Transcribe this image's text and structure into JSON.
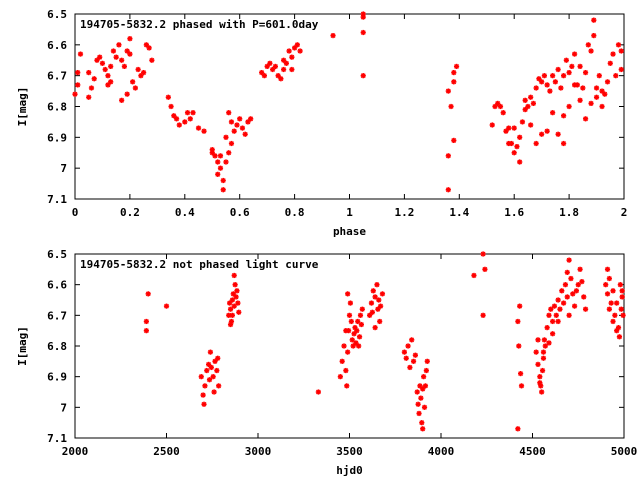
{
  "chart_data": [
    {
      "type": "scatter",
      "title": "194705-5832.2 phased with P=601.0day",
      "xlabel": "phase",
      "ylabel": "I[mag]",
      "xlim": [
        0,
        2
      ],
      "ylim": [
        7.1,
        6.5
      ],
      "y_inverted": true,
      "grid": false,
      "marker_color": "#ff0000",
      "xticks": [
        0,
        0.2,
        0.4,
        0.6,
        0.8,
        1,
        1.2,
        1.4,
        1.6,
        1.8,
        2
      ],
      "xtick_labels": [
        "0",
        "0.2",
        "0.4",
        "0.6",
        "0.8",
        "1",
        "1.2",
        "1.4",
        "1.6",
        "1.8",
        "2"
      ],
      "yticks": [
        6.5,
        6.6,
        6.7,
        6.8,
        6.9,
        7.0,
        7.1
      ],
      "ytick_labels": [
        "6.5",
        "6.6",
        "6.7",
        "6.8",
        "6.9",
        "7",
        "7.1"
      ],
      "points": [
        [
          0.01,
          6.69
        ],
        [
          0.01,
          6.73
        ],
        [
          0.0,
          6.76
        ],
        [
          0.02,
          6.63
        ],
        [
          0.05,
          6.69
        ],
        [
          0.05,
          6.77
        ],
        [
          0.06,
          6.74
        ],
        [
          0.07,
          6.71
        ],
        [
          0.08,
          6.65
        ],
        [
          0.09,
          6.64
        ],
        [
          0.1,
          6.66
        ],
        [
          0.11,
          6.68
        ],
        [
          0.12,
          6.7
        ],
        [
          0.12,
          6.73
        ],
        [
          0.13,
          6.67
        ],
        [
          0.14,
          6.62
        ],
        [
          0.15,
          6.64
        ],
        [
          0.16,
          6.6
        ],
        [
          0.17,
          6.65
        ],
        [
          0.18,
          6.67
        ],
        [
          0.19,
          6.62
        ],
        [
          0.2,
          6.58
        ],
        [
          0.2,
          6.63
        ],
        [
          0.21,
          6.72
        ],
        [
          0.22,
          6.74
        ],
        [
          0.23,
          6.68
        ],
        [
          0.24,
          6.7
        ],
        [
          0.25,
          6.69
        ],
        [
          0.26,
          6.6
        ],
        [
          0.27,
          6.61
        ],
        [
          0.28,
          6.65
        ],
        [
          0.17,
          6.78
        ],
        [
          0.19,
          6.76
        ],
        [
          0.13,
          6.72
        ],
        [
          0.34,
          6.77
        ],
        [
          0.35,
          6.8
        ],
        [
          0.36,
          6.83
        ],
        [
          0.37,
          6.84
        ],
        [
          0.38,
          6.86
        ],
        [
          0.4,
          6.85
        ],
        [
          0.41,
          6.82
        ],
        [
          0.42,
          6.84
        ],
        [
          0.43,
          6.82
        ],
        [
          0.45,
          6.87
        ],
        [
          0.47,
          6.88
        ],
        [
          0.5,
          6.94
        ],
        [
          0.51,
          6.96
        ],
        [
          0.52,
          6.98
        ],
        [
          0.53,
          7.0
        ],
        [
          0.54,
          7.04
        ],
        [
          0.55,
          6.98
        ],
        [
          0.56,
          6.95
        ],
        [
          0.57,
          6.92
        ],
        [
          0.58,
          6.88
        ],
        [
          0.59,
          6.86
        ],
        [
          0.6,
          6.84
        ],
        [
          0.61,
          6.87
        ],
        [
          0.62,
          6.89
        ],
        [
          0.63,
          6.85
        ],
        [
          0.64,
          6.84
        ],
        [
          0.57,
          6.85
        ],
        [
          0.56,
          6.82
        ],
        [
          0.55,
          6.9
        ],
        [
          0.53,
          6.96
        ],
        [
          0.52,
          7.02
        ],
        [
          0.54,
          7.07
        ],
        [
          0.5,
          6.95
        ],
        [
          0.68,
          6.69
        ],
        [
          0.69,
          6.7
        ],
        [
          0.7,
          6.67
        ],
        [
          0.71,
          6.66
        ],
        [
          0.72,
          6.68
        ],
        [
          0.73,
          6.67
        ],
        [
          0.74,
          6.7
        ],
        [
          0.75,
          6.71
        ],
        [
          0.76,
          6.68
        ],
        [
          0.77,
          6.66
        ],
        [
          0.78,
          6.62
        ],
        [
          0.79,
          6.64
        ],
        [
          0.8,
          6.61
        ],
        [
          0.79,
          6.68
        ],
        [
          0.81,
          6.6
        ],
        [
          0.82,
          6.62
        ],
        [
          0.76,
          6.65
        ],
        [
          0.94,
          6.57
        ],
        [
          1.05,
          6.5
        ],
        [
          1.05,
          6.56
        ],
        [
          1.05,
          6.7
        ],
        [
          1.05,
          6.51
        ],
        [
          1.36,
          6.75
        ],
        [
          1.37,
          6.8
        ],
        [
          1.38,
          6.72
        ],
        [
          1.38,
          6.69
        ],
        [
          1.39,
          6.67
        ],
        [
          1.36,
          6.96
        ],
        [
          1.38,
          6.91
        ],
        [
          1.36,
          7.07
        ],
        [
          1.52,
          6.86
        ],
        [
          1.53,
          6.8
        ],
        [
          1.54,
          6.79
        ],
        [
          1.55,
          6.8
        ],
        [
          1.56,
          6.82
        ],
        [
          1.57,
          6.88
        ],
        [
          1.58,
          6.87
        ],
        [
          1.59,
          6.92
        ],
        [
          1.6,
          6.95
        ],
        [
          1.61,
          6.93
        ],
        [
          1.62,
          6.98
        ],
        [
          1.58,
          6.92
        ],
        [
          1.63,
          6.85
        ],
        [
          1.64,
          6.78
        ],
        [
          1.65,
          6.8
        ],
        [
          1.66,
          6.77
        ],
        [
          1.67,
          6.79
        ],
        [
          1.68,
          6.74
        ],
        [
          1.69,
          6.71
        ],
        [
          1.7,
          6.72
        ],
        [
          1.71,
          6.7
        ],
        [
          1.72,
          6.73
        ],
        [
          1.73,
          6.75
        ],
        [
          1.74,
          6.7
        ],
        [
          1.75,
          6.72
        ],
        [
          1.76,
          6.68
        ],
        [
          1.77,
          6.74
        ],
        [
          1.78,
          6.7
        ],
        [
          1.79,
          6.65
        ],
        [
          1.8,
          6.69
        ],
        [
          1.81,
          6.67
        ],
        [
          1.82,
          6.63
        ],
        [
          1.83,
          6.73
        ],
        [
          1.84,
          6.78
        ],
        [
          1.85,
          6.74
        ],
        [
          1.86,
          6.69
        ],
        [
          1.87,
          6.6
        ],
        [
          1.88,
          6.62
        ],
        [
          1.89,
          6.52
        ],
        [
          1.89,
          6.57
        ],
        [
          1.9,
          6.74
        ],
        [
          1.91,
          6.7
        ],
        [
          1.92,
          6.8
        ],
        [
          1.93,
          6.76
        ],
        [
          1.94,
          6.72
        ],
        [
          1.95,
          6.66
        ],
        [
          1.96,
          6.63
        ],
        [
          1.97,
          6.7
        ],
        [
          1.98,
          6.6
        ],
        [
          1.99,
          6.68
        ],
        [
          1.99,
          6.62
        ],
        [
          1.7,
          6.89
        ],
        [
          1.68,
          6.92
        ],
        [
          1.66,
          6.86
        ],
        [
          1.72,
          6.88
        ],
        [
          1.78,
          6.83
        ],
        [
          1.76,
          6.89
        ],
        [
          1.8,
          6.8
        ],
        [
          1.82,
          6.73
        ],
        [
          1.84,
          6.67
        ],
        [
          1.86,
          6.84
        ],
        [
          1.88,
          6.79
        ],
        [
          1.9,
          6.77
        ],
        [
          1.92,
          6.75
        ],
        [
          1.78,
          6.92
        ],
        [
          1.74,
          6.82
        ],
        [
          1.64,
          6.81
        ],
        [
          1.62,
          6.9
        ],
        [
          1.6,
          6.87
        ]
      ]
    },
    {
      "type": "scatter",
      "title": "194705-5832.2 not phased light curve",
      "xlabel": "hjd0",
      "ylabel": "I[mag]",
      "xlim": [
        2000,
        5000
      ],
      "ylim": [
        7.1,
        6.5
      ],
      "y_inverted": true,
      "grid": false,
      "marker_color": "#ff0000",
      "xticks": [
        2000,
        2500,
        3000,
        3500,
        4000,
        4500,
        5000
      ],
      "xtick_labels": [
        "2000",
        "2500",
        "3000",
        "3500",
        "4000",
        "4500",
        "5000"
      ],
      "yticks": [
        6.5,
        6.6,
        6.7,
        6.8,
        6.9,
        7.0,
        7.1
      ],
      "ytick_labels": [
        "6.5",
        "6.6",
        "6.7",
        "6.8",
        "6.9",
        "7",
        "7.1"
      ],
      "points": [
        [
          2400,
          6.63
        ],
        [
          2390,
          6.72
        ],
        [
          2390,
          6.75
        ],
        [
          2500,
          6.67
        ],
        [
          2690,
          6.9
        ],
        [
          2700,
          6.96
        ],
        [
          2705,
          6.99
        ],
        [
          2710,
          6.93
        ],
        [
          2720,
          6.88
        ],
        [
          2730,
          6.86
        ],
        [
          2740,
          6.82
        ],
        [
          2745,
          6.87
        ],
        [
          2755,
          6.9
        ],
        [
          2765,
          6.85
        ],
        [
          2775,
          6.88
        ],
        [
          2780,
          6.84
        ],
        [
          2785,
          6.93
        ],
        [
          2760,
          6.95
        ],
        [
          2735,
          6.91
        ],
        [
          2840,
          6.7
        ],
        [
          2845,
          6.66
        ],
        [
          2850,
          6.68
        ],
        [
          2855,
          6.72
        ],
        [
          2860,
          6.65
        ],
        [
          2865,
          6.63
        ],
        [
          2870,
          6.67
        ],
        [
          2875,
          6.6
        ],
        [
          2880,
          6.64
        ],
        [
          2885,
          6.62
        ],
        [
          2890,
          6.66
        ],
        [
          2895,
          6.69
        ],
        [
          2870,
          6.57
        ],
        [
          2860,
          6.7
        ],
        [
          2850,
          6.73
        ],
        [
          3330,
          6.95
        ],
        [
          3450,
          6.9
        ],
        [
          3460,
          6.85
        ],
        [
          3470,
          6.8
        ],
        [
          3480,
          6.88
        ],
        [
          3485,
          6.93
        ],
        [
          3490,
          6.82
        ],
        [
          3495,
          6.75
        ],
        [
          3500,
          6.7
        ],
        [
          3505,
          6.66
        ],
        [
          3510,
          6.72
        ],
        [
          3515,
          6.78
        ],
        [
          3520,
          6.8
        ],
        [
          3525,
          6.76
        ],
        [
          3530,
          6.74
        ],
        [
          3535,
          6.79
        ],
        [
          3540,
          6.75
        ],
        [
          3545,
          6.72
        ],
        [
          3550,
          6.8
        ],
        [
          3555,
          6.77
        ],
        [
          3560,
          6.7
        ],
        [
          3565,
          6.73
        ],
        [
          3570,
          6.68
        ],
        [
          3490,
          6.63
        ],
        [
          3480,
          6.75
        ],
        [
          3610,
          6.7
        ],
        [
          3620,
          6.66
        ],
        [
          3630,
          6.62
        ],
        [
          3640,
          6.64
        ],
        [
          3650,
          6.6
        ],
        [
          3655,
          6.68
        ],
        [
          3660,
          6.65
        ],
        [
          3665,
          6.72
        ],
        [
          3670,
          6.67
        ],
        [
          3680,
          6.63
        ],
        [
          3640,
          6.74
        ],
        [
          3625,
          6.69
        ],
        [
          3800,
          6.82
        ],
        [
          3810,
          6.84
        ],
        [
          3820,
          6.8
        ],
        [
          3830,
          6.87
        ],
        [
          3840,
          6.78
        ],
        [
          3850,
          6.85
        ],
        [
          3860,
          6.83
        ],
        [
          3870,
          6.95
        ],
        [
          3875,
          6.99
        ],
        [
          3880,
          7.02
        ],
        [
          3890,
          6.97
        ],
        [
          3895,
          7.05
        ],
        [
          3900,
          6.94
        ],
        [
          3905,
          6.9
        ],
        [
          3910,
          7.0
        ],
        [
          3915,
          6.93
        ],
        [
          3920,
          6.88
        ],
        [
          3925,
          6.85
        ],
        [
          3885,
          6.93
        ],
        [
          3900,
          7.07
        ],
        [
          4180,
          6.57
        ],
        [
          4230,
          6.5
        ],
        [
          4240,
          6.55
        ],
        [
          4230,
          6.7
        ],
        [
          4420,
          6.72
        ],
        [
          4430,
          6.67
        ],
        [
          4425,
          6.8
        ],
        [
          4440,
          6.93
        ],
        [
          4435,
          6.89
        ],
        [
          4420,
          7.07
        ],
        [
          4520,
          6.82
        ],
        [
          4530,
          6.86
        ],
        [
          4540,
          6.9
        ],
        [
          4545,
          6.93
        ],
        [
          4550,
          6.95
        ],
        [
          4555,
          6.88
        ],
        [
          4560,
          6.82
        ],
        [
          4565,
          6.78
        ],
        [
          4570,
          6.8
        ],
        [
          4580,
          6.74
        ],
        [
          4590,
          6.7
        ],
        [
          4600,
          6.68
        ],
        [
          4610,
          6.72
        ],
        [
          4620,
          6.67
        ],
        [
          4630,
          6.7
        ],
        [
          4640,
          6.65
        ],
        [
          4650,
          6.68
        ],
        [
          4660,
          6.62
        ],
        [
          4670,
          6.66
        ],
        [
          4680,
          6.6
        ],
        [
          4690,
          6.56
        ],
        [
          4700,
          6.52
        ],
        [
          4710,
          6.58
        ],
        [
          4720,
          6.63
        ],
        [
          4730,
          6.67
        ],
        [
          4740,
          6.62
        ],
        [
          4750,
          6.6
        ],
        [
          4760,
          6.55
        ],
        [
          4770,
          6.59
        ],
        [
          4780,
          6.64
        ],
        [
          4790,
          6.68
        ],
        [
          4590,
          6.79
        ],
        [
          4610,
          6.76
        ],
        [
          4540,
          6.92
        ],
        [
          4530,
          6.78
        ],
        [
          4560,
          6.84
        ],
        [
          4640,
          6.72
        ],
        [
          4700,
          6.7
        ],
        [
          4690,
          6.64
        ],
        [
          4900,
          6.6
        ],
        [
          4910,
          6.63
        ],
        [
          4920,
          6.58
        ],
        [
          4930,
          6.66
        ],
        [
          4940,
          6.62
        ],
        [
          4950,
          6.7
        ],
        [
          4960,
          6.66
        ],
        [
          4970,
          6.74
        ],
        [
          4975,
          6.77
        ],
        [
          4980,
          6.6
        ],
        [
          4985,
          6.68
        ],
        [
          4990,
          6.64
        ],
        [
          4995,
          6.7
        ],
        [
          4960,
          6.75
        ],
        [
          4940,
          6.72
        ],
        [
          4920,
          6.68
        ],
        [
          4910,
          6.55
        ],
        [
          4990,
          6.62
        ]
      ]
    }
  ]
}
